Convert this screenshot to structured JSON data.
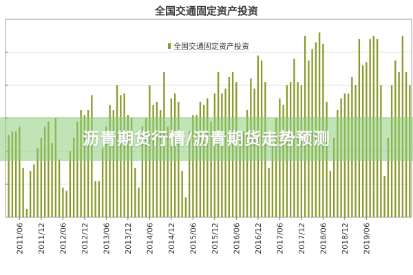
{
  "overlay": {
    "headline": "沥青期货行情/沥青期货走势预测"
  },
  "chart_data": {
    "type": "bar",
    "title": "全国交通固定资产投资",
    "legend": {
      "entries": [
        "全国交通固定资产投资"
      ],
      "placement": "top-center"
    },
    "color": "#8b9a2b",
    "grid": true,
    "x_tick_labels": [
      "2011/06",
      "2011/12",
      "2012/06",
      "2012/12",
      "2013/06",
      "2013/12",
      "2014/06",
      "2014/12",
      "2015/06",
      "2015/12",
      "2016/06",
      "2016/12",
      "2017/06",
      "2017/12",
      "2018/06",
      "2018/12",
      "2019/06"
    ],
    "x_start": "2011/03",
    "values": [
      50,
      52,
      52,
      55,
      30,
      5,
      28,
      32,
      42,
      48,
      55,
      58,
      45,
      60,
      35,
      18,
      16,
      40,
      48,
      58,
      65,
      62,
      65,
      74,
      22,
      22,
      42,
      55,
      68,
      65,
      80,
      74,
      75,
      62,
      60,
      30,
      18,
      55,
      60,
      80,
      68,
      70,
      65,
      88,
      55,
      72,
      75,
      70,
      28,
      12,
      52,
      62,
      62,
      70,
      68,
      72,
      58,
      75,
      88,
      75,
      78,
      85,
      88,
      82,
      48,
      52,
      65,
      84,
      78,
      98,
      95,
      82,
      30,
      44,
      60,
      72,
      68,
      80,
      82,
      96,
      82,
      80,
      110,
      95,
      102,
      106,
      112,
      105,
      70,
      28,
      48,
      65,
      72,
      75,
      75,
      85,
      80,
      108,
      92,
      94,
      108,
      110,
      108,
      80,
      25,
      48,
      80,
      95,
      88,
      110,
      88,
      80
    ]
  }
}
